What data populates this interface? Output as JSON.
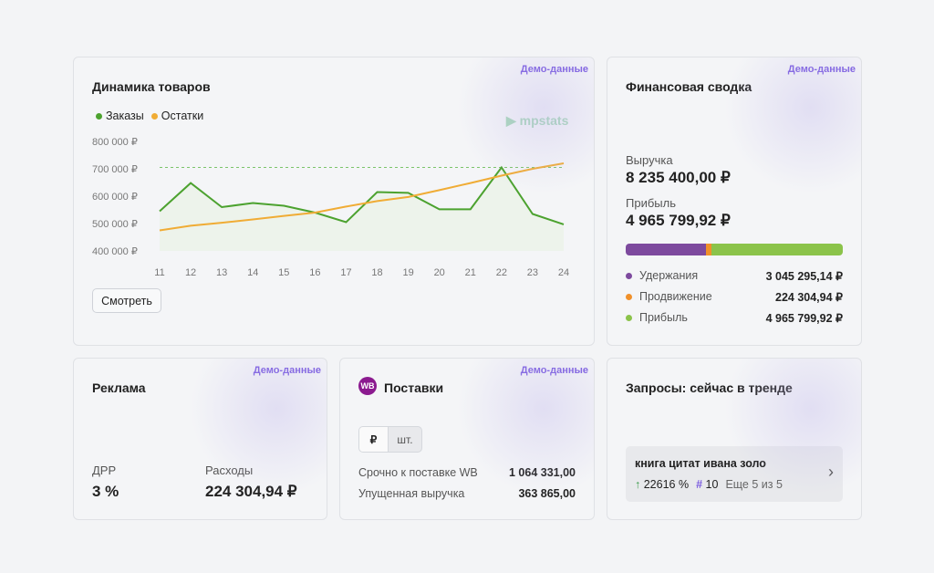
{
  "demo_label": "Демо-данные",
  "goods": {
    "title": "Динамика товаров",
    "legend": [
      "Заказы",
      "Остатки"
    ],
    "logo": "mpstats",
    "button": "Смотреть"
  },
  "chart_data": {
    "type": "line",
    "x": [
      "11",
      "12",
      "13",
      "14",
      "15",
      "16",
      "17",
      "18",
      "19",
      "20",
      "21",
      "22",
      "23",
      "24"
    ],
    "yticks": [
      "800 000 ₽",
      "700 000 ₽",
      "600 000 ₽",
      "500 000 ₽",
      "400 000 ₽"
    ],
    "ylim": [
      400000,
      800000
    ],
    "series": [
      {
        "name": "Заказы",
        "color": "#4ca22f",
        "values": [
          545000,
          648000,
          560000,
          575000,
          565000,
          540000,
          505000,
          615000,
          612000,
          552000,
          552000,
          705000,
          535000,
          497000
        ]
      },
      {
        "name": "Остатки",
        "color": "#f0ac35",
        "values": [
          475000,
          492000,
          503000,
          515000,
          528000,
          540000,
          562000,
          582000,
          597000,
          622000,
          648000,
          675000,
          700000,
          720000
        ]
      }
    ],
    "reference_line": 705000
  },
  "finance": {
    "title": "Финансовая сводка",
    "revenue_label": "Выручка",
    "revenue": "8 235 400,00 ₽",
    "profit_label": "Прибыль",
    "profit": "4 965 799,92 ₽",
    "items": [
      {
        "label": "Удержания",
        "value": "3 045 295,14 ₽",
        "color": "#7d4a9e",
        "share": 37
      },
      {
        "label": "Продвижение",
        "value": "224 304,94 ₽",
        "color": "#f0902a",
        "share": 2.7
      },
      {
        "label": "Прибыль",
        "value": "4 965 799,92 ₽",
        "color": "#8bc34a",
        "share": 60.3
      }
    ]
  },
  "ads": {
    "title": "Реклама",
    "drr_label": "ДРР",
    "drr": "3 %",
    "spend_label": "Расходы",
    "spend": "224 304,94 ₽"
  },
  "supplies": {
    "title": "Поставки",
    "badge": "WB",
    "toggle": [
      "₽",
      "шт."
    ],
    "rows": [
      {
        "label": "Срочно к поставке WB",
        "value": "1 064 331,00"
      },
      {
        "label": "Упущенная выручка",
        "value": "363 865,00"
      }
    ]
  },
  "trends": {
    "title": "Запросы: сейчас в тренде",
    "query": "книга цитат ивана золо",
    "growth": "22616 %",
    "rank": "10",
    "more": "Еще 5 из 5"
  }
}
